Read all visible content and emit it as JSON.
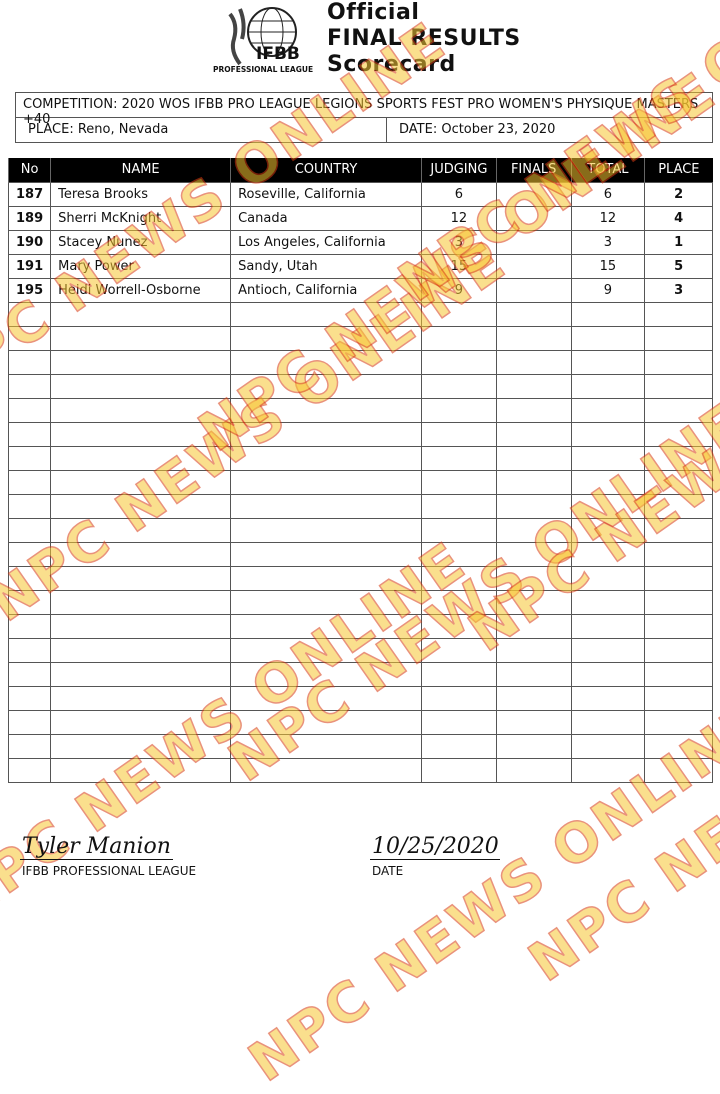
{
  "header": {
    "logo_text": "IFBB",
    "logo_sub": "PROFESSIONAL LEAGUE",
    "title_lines": [
      "Official",
      "FINAL RESULTS",
      "Scorecard"
    ]
  },
  "info": {
    "competition": "COMPETITION:  2020 WOS IFBB PRO LEAGUE LEGIONS SPORTS FEST PRO WOMEN'S PHYSIQUE MASTERS +40",
    "place": "PLACE:  Reno, Nevada",
    "date": "DATE:   October 23, 2020"
  },
  "table": {
    "columns": [
      "No",
      "NAME",
      "COUNTRY",
      "JUDGING",
      "FINALS",
      "TOTAL",
      "PLACE"
    ],
    "rows": [
      {
        "no": "187",
        "name": "Teresa Brooks",
        "country": "Roseville, California",
        "judging": "6",
        "finals": "",
        "total": "6",
        "place": "2"
      },
      {
        "no": "189",
        "name": "Sherri McKnight",
        "country": "Canada",
        "judging": "12",
        "finals": "",
        "total": "12",
        "place": "4"
      },
      {
        "no": "190",
        "name": "Stacey Nunez",
        "country": "Los Angeles, California",
        "judging": "3",
        "finals": "",
        "total": "3",
        "place": "1"
      },
      {
        "no": "191",
        "name": "Mary Power",
        "country": "Sandy, Utah",
        "judging": "15",
        "finals": "",
        "total": "15",
        "place": "5"
      },
      {
        "no": "195",
        "name": "Heidi Worrell-Osborne",
        "country": "Antioch, California",
        "judging": "9",
        "finals": "",
        "total": "9",
        "place": "3"
      }
    ]
  },
  "signature": {
    "name": "Tyler Manion",
    "org": "IFBB PROFESSIONAL LEAGUE",
    "date": "10/25/2020",
    "date_label": "DATE"
  },
  "watermark": "NPC NEWS ONLINE"
}
